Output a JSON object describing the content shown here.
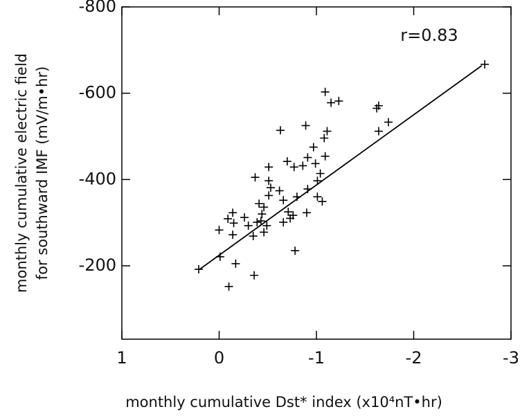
{
  "chart_data": {
    "type": "scatter",
    "x_label": "monthly cumulative Dst* index (x10⁴nT•hr)",
    "y_label": [
      "monthly cumulative electric field",
      "for southward IMF (mV/m•hr)"
    ],
    "annotation": "r=0.83",
    "xlim": [
      1,
      -3
    ],
    "xticks": [
      1,
      0,
      -1,
      -2,
      -3
    ],
    "ylim": [
      -30,
      -800
    ],
    "yticks": [
      -200,
      -400,
      -600,
      -800
    ],
    "marker": "+",
    "color": "#000000",
    "x": [
      0.21,
      -0.01,
      0,
      -0.1,
      -0.09,
      -0.14,
      -0.15,
      -0.14,
      -0.17,
      -0.26,
      -0.3,
      -0.35,
      -0.36,
      -0.37,
      -0.39,
      -0.41,
      -0.43,
      -0.44,
      -0.46,
      -0.46,
      -0.49,
      -0.51,
      -0.51,
      -0.51,
      -0.53,
      -0.62,
      -0.63,
      -0.66,
      -0.66,
      -0.7,
      -0.71,
      -0.73,
      -0.77,
      -0.76,
      -0.78,
      -0.8,
      -0.86,
      -0.89,
      -0.9,
      -0.91,
      -0.91,
      -0.97,
      -0.99,
      -1.01,
      -1.01,
      -1.04,
      -1.06,
      -1.08,
      -1.09,
      -1.09,
      -1.11,
      -1.15,
      -1.23,
      -1.62,
      -1.64,
      -1.64,
      -1.74,
      -2.73
    ],
    "values": [
      -192,
      -221,
      -283,
      -152,
      -309,
      -323,
      -299,
      -272,
      -205,
      -312,
      -293,
      -269,
      -178,
      -405,
      -301,
      -344,
      -304,
      -320,
      -336,
      -278,
      -293,
      -363,
      -397,
      -429,
      -381,
      -374,
      -514,
      -352,
      -301,
      -442,
      -325,
      -310,
      -429,
      -317,
      -235,
      -360,
      -432,
      -525,
      -323,
      -378,
      -451,
      -475,
      -437,
      -360,
      -397,
      -414,
      -349,
      -496,
      -454,
      -603,
      -512,
      -578,
      -582,
      -565,
      -571,
      -512,
      -533,
      -667
    ],
    "fit": {
      "x": [
        0.2,
        -2.7
      ],
      "values": [
        -192,
        -664
      ]
    }
  }
}
